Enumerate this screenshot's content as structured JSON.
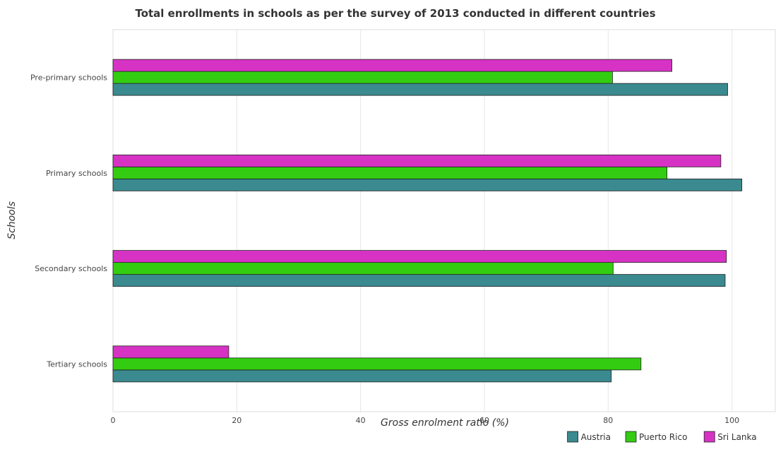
{
  "chart_data": {
    "type": "bar",
    "orientation": "horizontal",
    "title": "Total enrollments in schools as per the survey of 2013 conducted in different countries",
    "xlabel": "Gross enrolment ratio (%)",
    "ylabel": "Schools",
    "categories": [
      "Pre-primary schools",
      "Primary schools",
      "Secondary schools",
      "Tertiary schools"
    ],
    "series": [
      {
        "name": "Austria",
        "color": "#3a8a8f",
        "values": [
          99.3,
          101.6,
          98.9,
          80.5
        ]
      },
      {
        "name": "Puerto Rico",
        "color": "#33cc11",
        "values": [
          80.7,
          89.5,
          80.8,
          85.3
        ]
      },
      {
        "name": "Sri Lanka",
        "color": "#d633c4",
        "values": [
          90.3,
          98.2,
          99.1,
          18.7
        ]
      }
    ],
    "xlim": [
      0,
      107
    ],
    "xticks": [
      0,
      20,
      40,
      60,
      80,
      100
    ],
    "grid": true,
    "legend_position": "bottom-right"
  }
}
